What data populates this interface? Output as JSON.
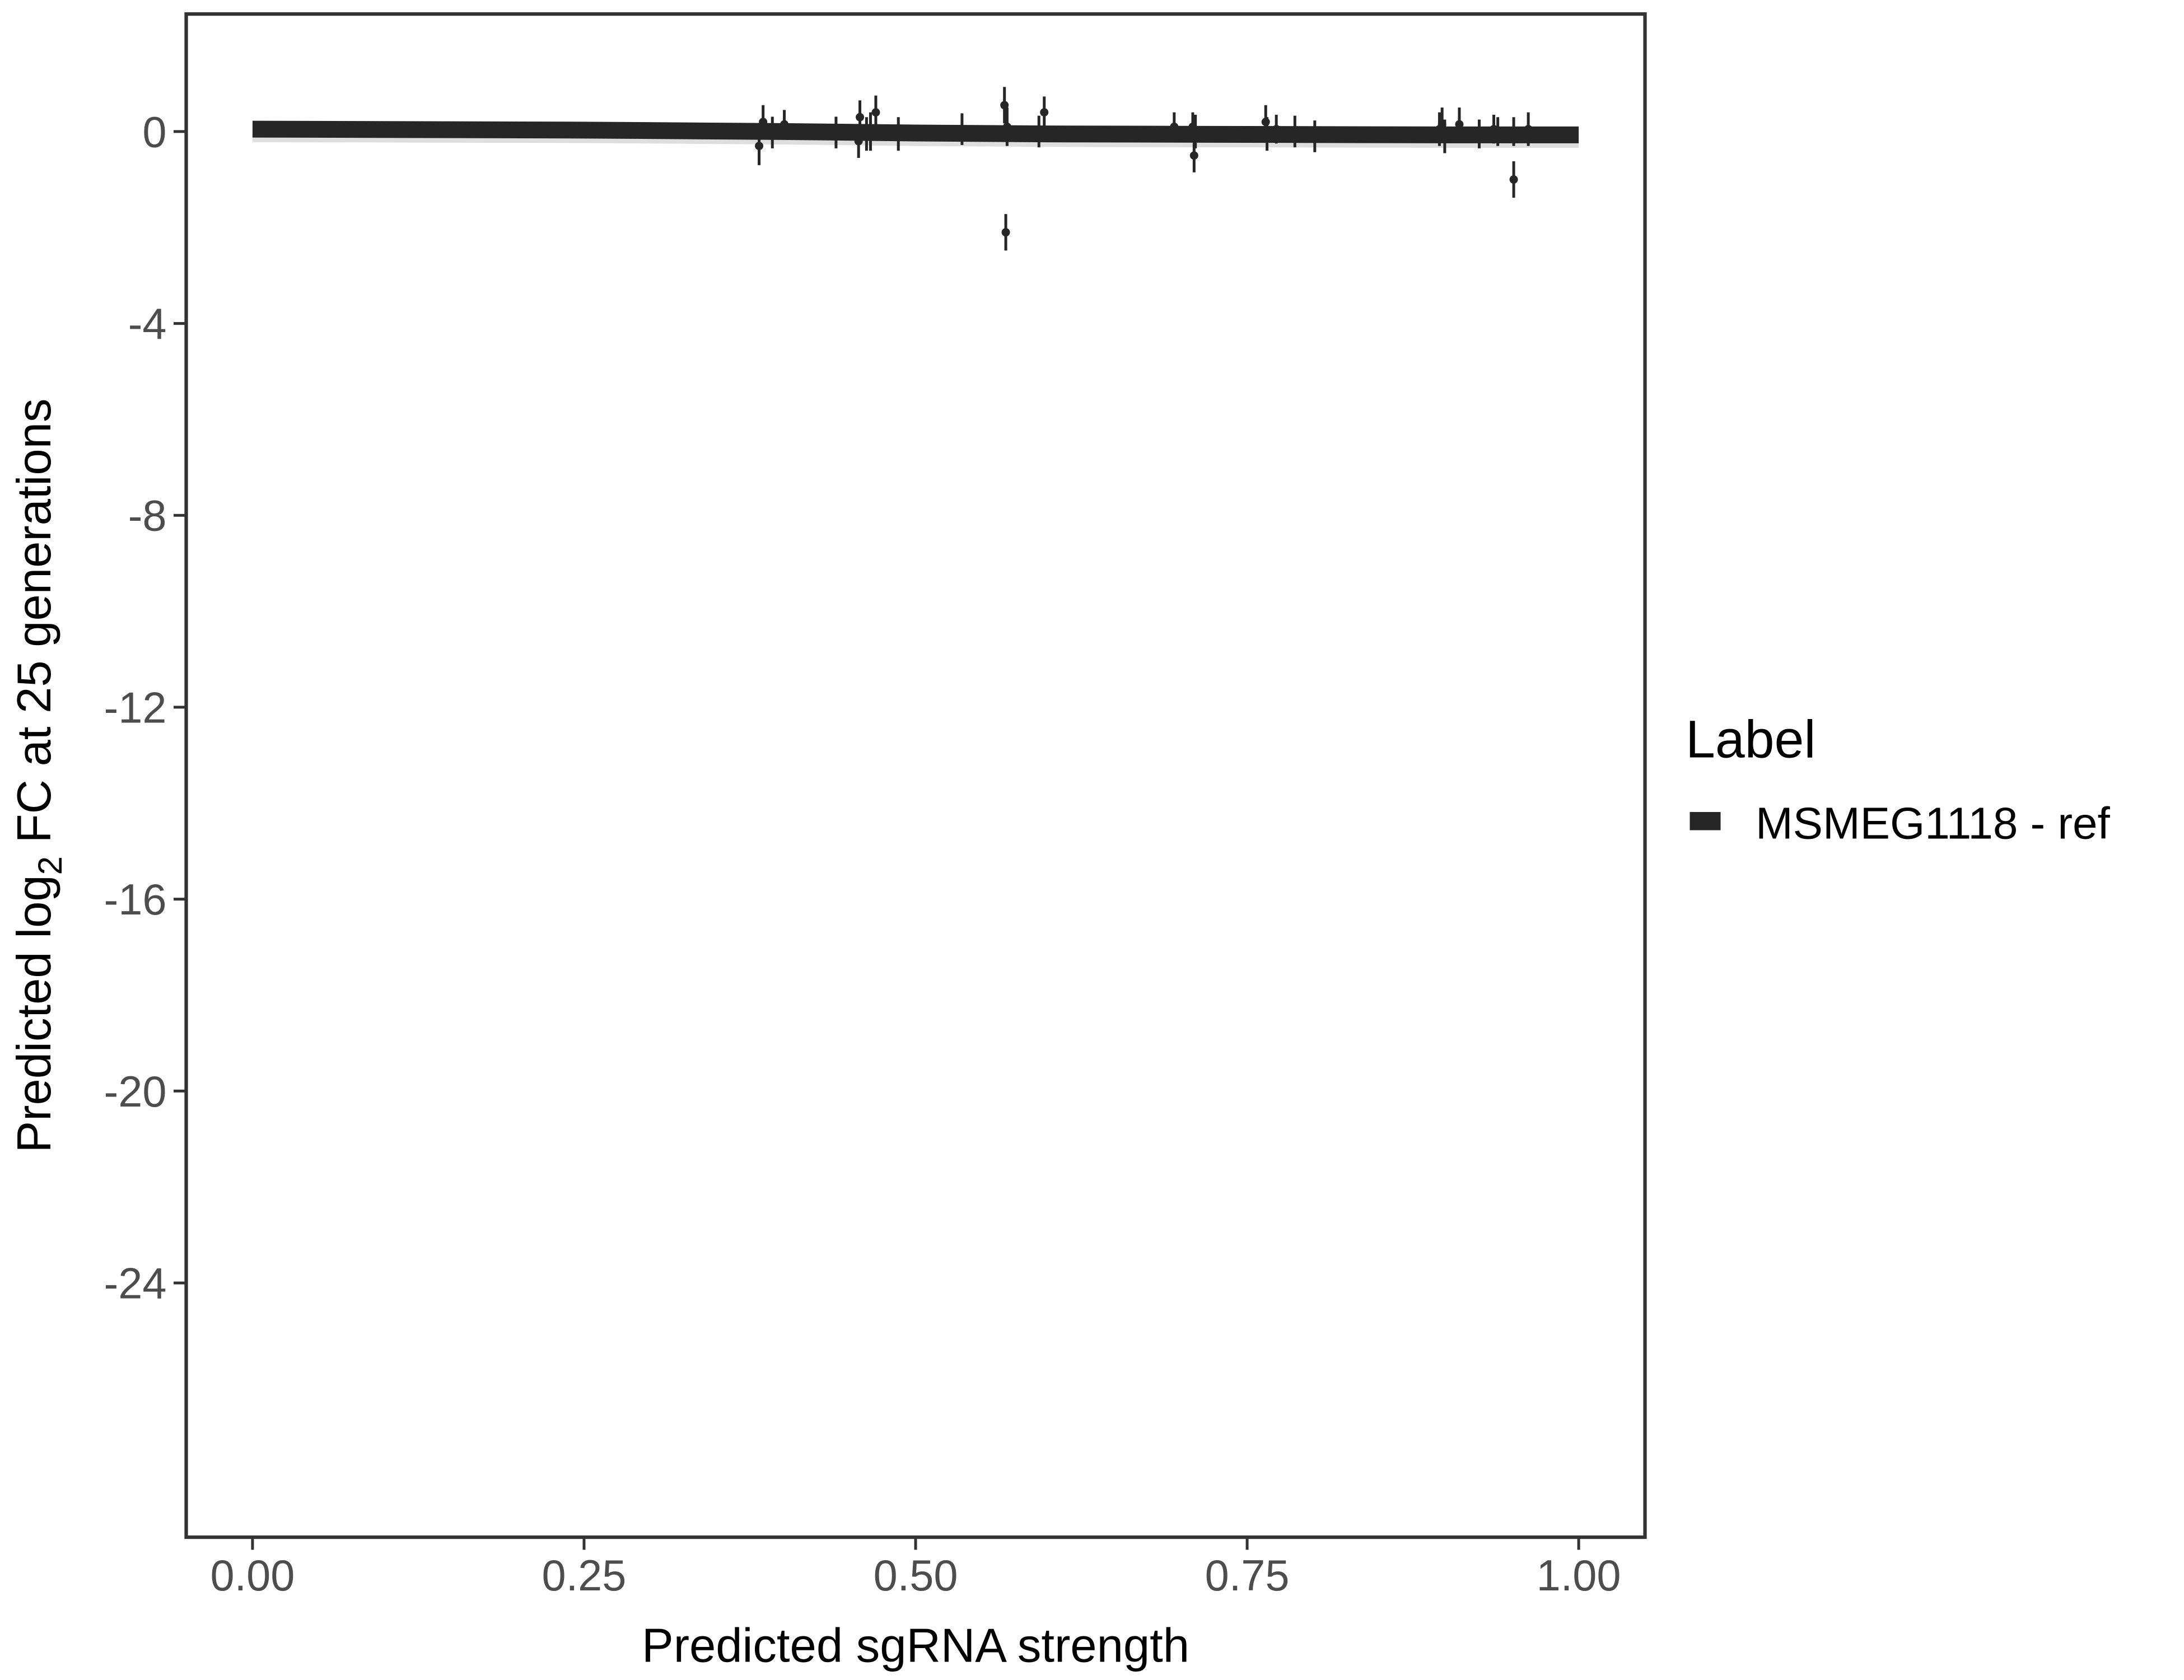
{
  "chart_data": {
    "type": "scatter",
    "xlabel": "Predicted sgRNA strength",
    "ylabel_parts": [
      "Predicted  log",
      "2",
      " FC at 25 generations"
    ],
    "xlim": [
      -0.05,
      1.05
    ],
    "ylim": [
      -29.3,
      2.45
    ],
    "xticks": [
      0,
      0.25,
      0.5,
      0.75,
      1
    ],
    "xtick_labels": [
      "0.00",
      "0.25",
      "0.50",
      "0.75",
      "1.00"
    ],
    "yticks": [
      0,
      -4,
      -8,
      -12,
      -16,
      -20,
      -24
    ],
    "ytick_labels": [
      "0",
      "-4",
      "-8",
      "-12",
      "-16",
      "-20",
      "-24"
    ],
    "grid": false,
    "legend": {
      "title": "Label",
      "placement": "right",
      "entries": [
        "MSMEG1118 - ref"
      ]
    },
    "colors": {
      "series": "#262626",
      "ribbon": "#bdbdbd",
      "axis": "#333333",
      "tick_text": "#4d4d4d"
    },
    "smooth_line": {
      "x": [
        0,
        0.25,
        0.4,
        0.5,
        0.6,
        0.75,
        0.9,
        1.0
      ],
      "y": [
        0.05,
        0.03,
        0.0,
        -0.03,
        -0.05,
        -0.06,
        -0.07,
        -0.07
      ],
      "se": 0.12
    },
    "points": [
      {
        "x": 0.382,
        "y": -0.3,
        "err": 0.4
      },
      {
        "x": 0.385,
        "y": 0.2,
        "err": 0.35
      },
      {
        "x": 0.392,
        "y": -0.02,
        "err": 0.33
      },
      {
        "x": 0.401,
        "y": 0.15,
        "err": 0.3
      },
      {
        "x": 0.44,
        "y": -0.02,
        "err": 0.33
      },
      {
        "x": 0.458,
        "y": 0.3,
        "err": 0.35
      },
      {
        "x": 0.457,
        "y": -0.2,
        "err": 0.35
      },
      {
        "x": 0.463,
        "y": -0.05,
        "err": 0.35
      },
      {
        "x": 0.466,
        "y": 0.0,
        "err": 0.4
      },
      {
        "x": 0.47,
        "y": 0.4,
        "err": 0.35
      },
      {
        "x": 0.487,
        "y": -0.05,
        "err": 0.35
      },
      {
        "x": 0.535,
        "y": 0.05,
        "err": 0.33
      },
      {
        "x": 0.567,
        "y": 0.55,
        "err": 0.38
      },
      {
        "x": 0.568,
        "y": -2.1,
        "err": 0.38
      },
      {
        "x": 0.569,
        "y": 0.1,
        "err": 0.4
      },
      {
        "x": 0.593,
        "y": 0.0,
        "err": 0.33
      },
      {
        "x": 0.597,
        "y": 0.4,
        "err": 0.33
      },
      {
        "x": 0.695,
        "y": 0.1,
        "err": 0.3
      },
      {
        "x": 0.709,
        "y": 0.1,
        "err": 0.3
      },
      {
        "x": 0.71,
        "y": -0.5,
        "err": 0.35
      },
      {
        "x": 0.711,
        "y": 0.0,
        "err": 0.35
      },
      {
        "x": 0.764,
        "y": 0.2,
        "err": 0.35
      },
      {
        "x": 0.765,
        "y": -0.05,
        "err": 0.35
      },
      {
        "x": 0.772,
        "y": 0.05,
        "err": 0.3
      },
      {
        "x": 0.786,
        "y": 0.0,
        "err": 0.33
      },
      {
        "x": 0.801,
        "y": -0.1,
        "err": 0.33
      },
      {
        "x": 0.895,
        "y": 0.05,
        "err": 0.35
      },
      {
        "x": 0.897,
        "y": 0.15,
        "err": 0.35
      },
      {
        "x": 0.899,
        "y": -0.1,
        "err": 0.35
      },
      {
        "x": 0.91,
        "y": 0.15,
        "err": 0.35
      },
      {
        "x": 0.925,
        "y": -0.05,
        "err": 0.3
      },
      {
        "x": 0.936,
        "y": 0.05,
        "err": 0.3
      },
      {
        "x": 0.939,
        "y": 0.0,
        "err": 0.3
      },
      {
        "x": 0.951,
        "y": -1.0,
        "err": 0.38
      },
      {
        "x": 0.951,
        "y": 0.0,
        "err": 0.3
      },
      {
        "x": 0.962,
        "y": 0.05,
        "err": 0.35
      }
    ]
  }
}
